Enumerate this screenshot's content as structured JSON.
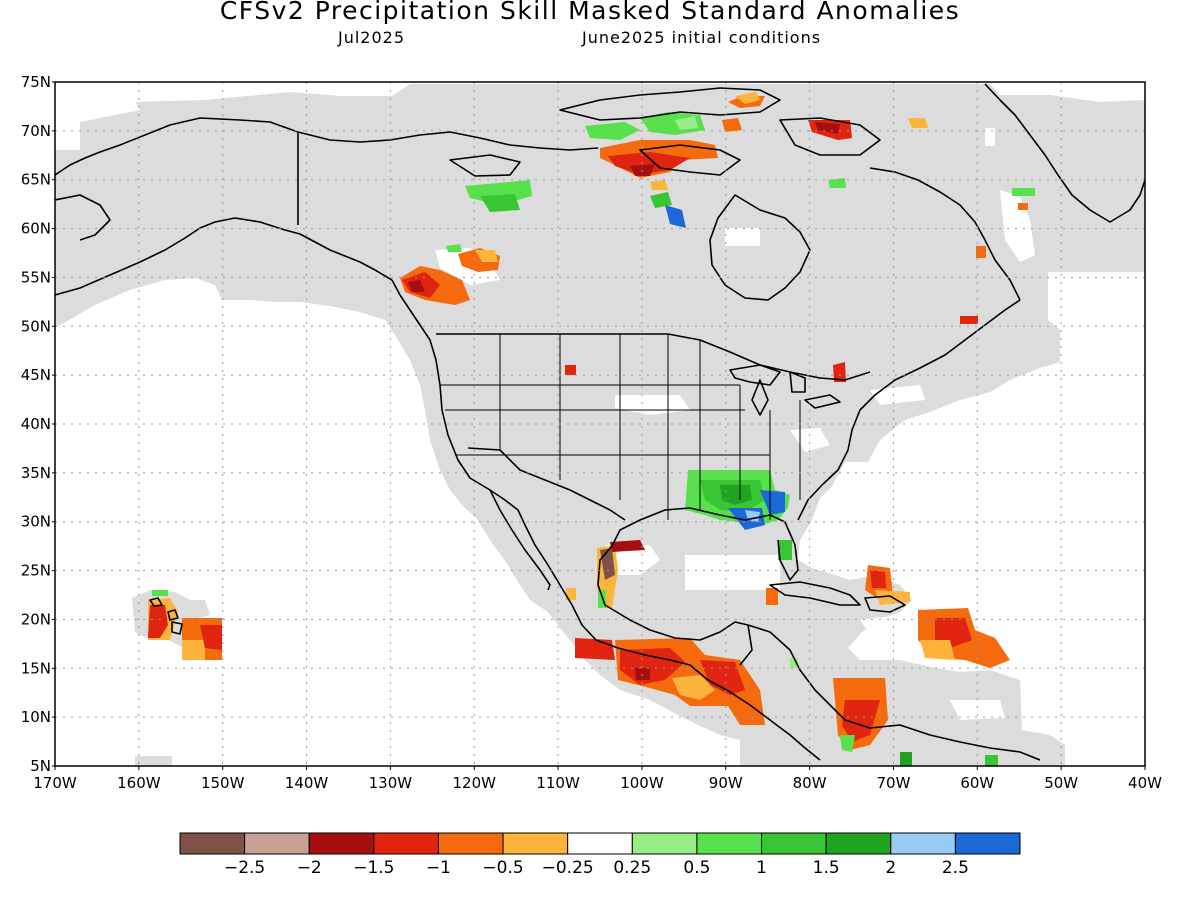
{
  "title": "CFSv2 Precipitation Skill Masked Standard Anomalies",
  "subtitle_left": "Jul2025",
  "subtitle_right": "June2025 initial conditions",
  "lat_labels": [
    "75N",
    "70N",
    "65N",
    "60N",
    "55N",
    "50N",
    "45N",
    "40N",
    "35N",
    "30N",
    "25N",
    "20N",
    "15N",
    "10N",
    "5N"
  ],
  "lon_labels": [
    "170W",
    "160W",
    "150W",
    "140W",
    "130W",
    "120W",
    "110W",
    "100W",
    "90W",
    "80W",
    "70W",
    "60W",
    "50W",
    "40W"
  ],
  "colorbar": {
    "colors": [
      "#7f5148",
      "#c8a096",
      "#a60f0f",
      "#e0240f",
      "#f56a0c",
      "#fcb53a",
      "#ffffff",
      "#98ee86",
      "#57e24d",
      "#38c633",
      "#20a420",
      "#98ccf7",
      "#1c68d6"
    ],
    "labels": [
      "−2.5",
      "−2",
      "−1.5",
      "−1",
      "−0.5",
      "−0.25",
      "0.25",
      "0.5",
      "1",
      "1.5",
      "2",
      "2.5"
    ]
  },
  "colors": {
    "mask": "#dcdcdc",
    "land_outline": "#000000",
    "grid": "#9a9a9a"
  },
  "anomaly_regions": [
    {
      "name": "southeast-us-wet",
      "values": [
        1,
        1.5,
        2,
        2.5
      ]
    },
    {
      "name": "canadian-arctic-dry",
      "values": [
        -1,
        -1.5
      ]
    },
    {
      "name": "western-mexico-dry",
      "values": [
        -2.5,
        -1.5,
        1
      ]
    },
    {
      "name": "central-america-pacific-dry",
      "values": [
        -0.5,
        -1,
        -1.5
      ]
    },
    {
      "name": "caribbean-dry",
      "values": [
        -0.5,
        -1
      ]
    },
    {
      "name": "hawaii-dry",
      "values": [
        -1,
        -0.5
      ]
    }
  ]
}
